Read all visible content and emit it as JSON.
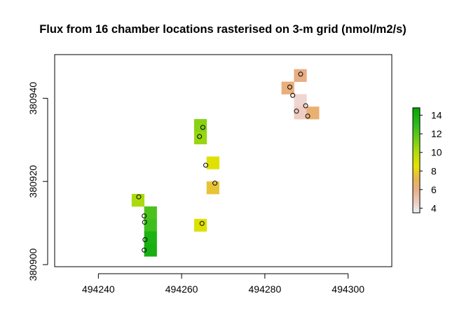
{
  "chart_data": {
    "type": "heatmap",
    "title": "Flux from 16 chamber locations rasterised on 3-m grid (nmol/m2/s)",
    "xlabel": "",
    "ylabel": "",
    "xlim": [
      494229.5,
      494310.5
    ],
    "ylim": [
      380899.5,
      380950.5
    ],
    "x_ticks": [
      494240,
      494260,
      494280,
      494300
    ],
    "y_ticks": [
      380900,
      380920,
      380940
    ],
    "x_tick_labels": [
      "494240",
      "494260",
      "494280",
      "494300"
    ],
    "y_tick_labels": [
      "380900",
      "380920",
      "380940"
    ],
    "cell_size": 3,
    "cells": [
      {
        "x": 494288.5,
        "y": 380945.5,
        "flux": 6.0
      },
      {
        "x": 494285.5,
        "y": 380942.5,
        "flux": 6.2
      },
      {
        "x": 494288.5,
        "y": 380939.5,
        "flux": 4.3
      },
      {
        "x": 494288.5,
        "y": 380936.5,
        "flux": 4.6
      },
      {
        "x": 494291.5,
        "y": 380936.5,
        "flux": 6.4
      },
      {
        "x": 494264.5,
        "y": 380933.5,
        "flux": 10.9
      },
      {
        "x": 494264.5,
        "y": 380930.5,
        "flux": 10.6
      },
      {
        "x": 494267.5,
        "y": 380924.5,
        "flux": 8.7
      },
      {
        "x": 494267.5,
        "y": 380918.5,
        "flux": 7.6
      },
      {
        "x": 494249.5,
        "y": 380915.5,
        "flux": 10.2
      },
      {
        "x": 494252.5,
        "y": 380912.5,
        "flux": 12.3
      },
      {
        "x": 494252.5,
        "y": 380909.5,
        "flux": 12.6
      },
      {
        "x": 494252.5,
        "y": 380906.5,
        "flux": 13.7
      },
      {
        "x": 494252.5,
        "y": 380903.5,
        "flux": 13.9
      },
      {
        "x": 494264.5,
        "y": 380909.5,
        "flux": 8.8
      }
    ],
    "points": [
      {
        "x": 494288.6,
        "y": 380945.8
      },
      {
        "x": 494286.0,
        "y": 380942.7
      },
      {
        "x": 494286.7,
        "y": 380940.7
      },
      {
        "x": 494289.8,
        "y": 380938.2
      },
      {
        "x": 494287.6,
        "y": 380936.9
      },
      {
        "x": 494290.3,
        "y": 380935.7
      },
      {
        "x": 494265.1,
        "y": 380933.0
      },
      {
        "x": 494264.3,
        "y": 380930.8
      },
      {
        "x": 494265.8,
        "y": 380923.9
      },
      {
        "x": 494268.0,
        "y": 380919.6
      },
      {
        "x": 494249.7,
        "y": 380916.3
      },
      {
        "x": 494251.0,
        "y": 380911.7
      },
      {
        "x": 494251.1,
        "y": 380910.2
      },
      {
        "x": 494251.2,
        "y": 380906.0
      },
      {
        "x": 494251.0,
        "y": 380903.5
      },
      {
        "x": 494264.9,
        "y": 380909.9
      }
    ],
    "colorbar": {
      "min": 3.5,
      "max": 14.8,
      "ticks": [
        4,
        6,
        8,
        10,
        12,
        14
      ],
      "tick_labels": [
        "4",
        "6",
        "8",
        "10",
        "12",
        "14"
      ],
      "palette": "terrain",
      "stops": [
        {
          "value": 3.5,
          "color": "#f2f2f2"
        },
        {
          "value": 4.5,
          "color": "#eecfc7"
        },
        {
          "value": 6.0,
          "color": "#e8ae85"
        },
        {
          "value": 7.2,
          "color": "#e7b64f"
        },
        {
          "value": 8.5,
          "color": "#e6e200"
        },
        {
          "value": 10.0,
          "color": "#b3dc0d"
        },
        {
          "value": 11.5,
          "color": "#6ccc18"
        },
        {
          "value": 13.0,
          "color": "#2eba1f"
        },
        {
          "value": 14.8,
          "color": "#00a600"
        }
      ]
    },
    "grid": false,
    "legend": "right"
  }
}
